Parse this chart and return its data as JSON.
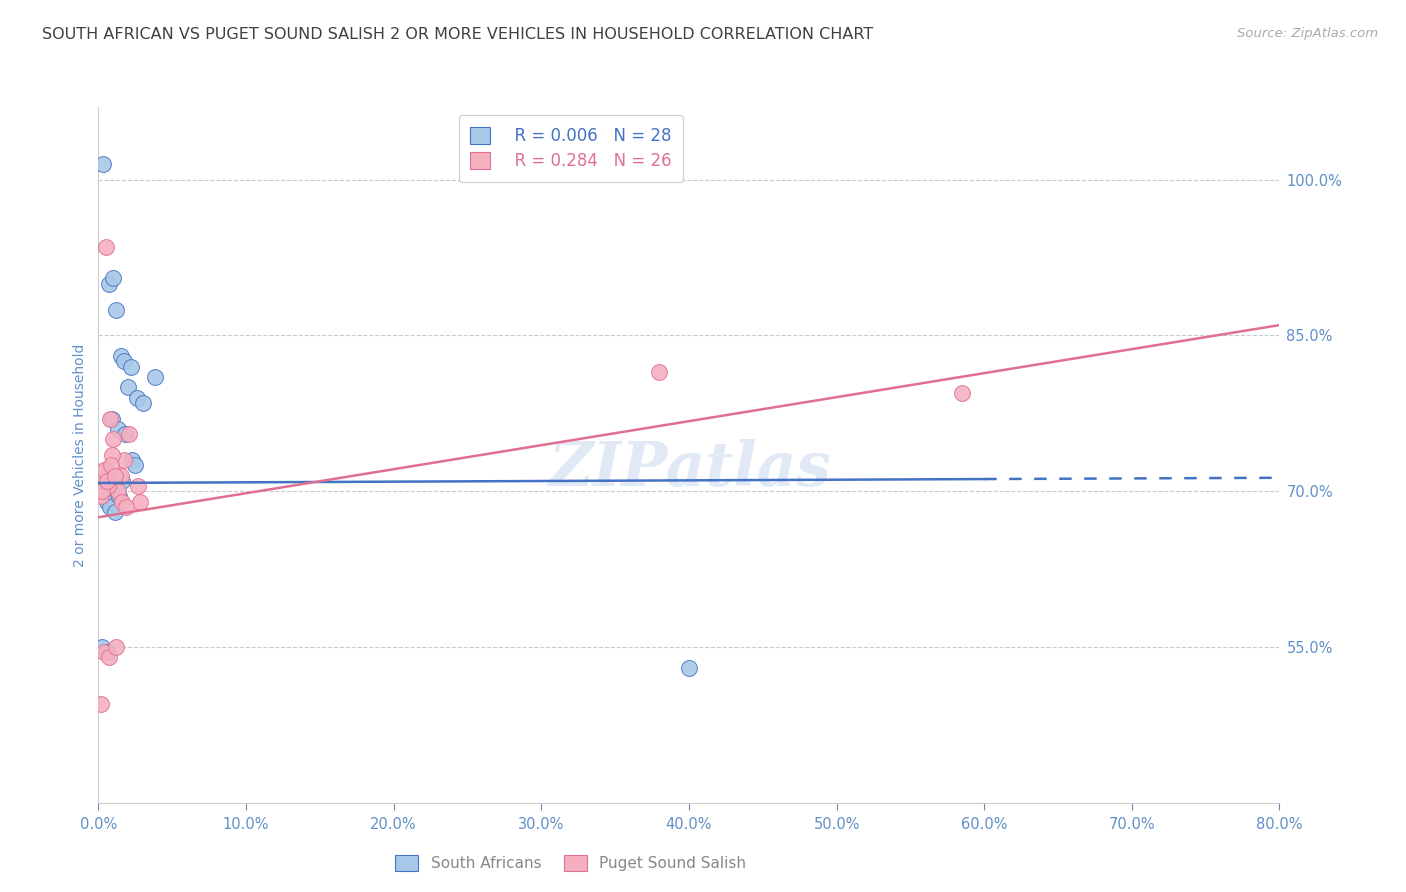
{
  "title": "SOUTH AFRICAN VS PUGET SOUND SALISH 2 OR MORE VEHICLES IN HOUSEHOLD CORRELATION CHART",
  "source": "Source: ZipAtlas.com",
  "xlabel": "",
  "ylabel": "2 or more Vehicles in Household",
  "xlim": [
    0.0,
    80.0
  ],
  "ylim": [
    40.0,
    107.0
  ],
  "yticks": [
    55.0,
    70.0,
    85.0,
    100.0
  ],
  "xticks": [
    0.0,
    10.0,
    20.0,
    30.0,
    40.0,
    50.0,
    60.0,
    70.0,
    80.0
  ],
  "blue_label": "South Africans",
  "pink_label": "Puget Sound Salish",
  "blue_r": "0.006",
  "blue_n": "28",
  "pink_r": "0.284",
  "pink_n": "26",
  "blue_color": "#a8c8e8",
  "pink_color": "#f5b0c0",
  "blue_line_color": "#4472c4",
  "pink_line_color": "#e07090",
  "title_color": "#404040",
  "axis_label_color": "#6090c8",
  "grid_color": "#c8c8d8",
  "blue_scatter_x": [
    0.3,
    0.7,
    1.0,
    1.2,
    1.5,
    1.7,
    2.0,
    2.2,
    2.6,
    3.0,
    3.8,
    0.15,
    0.5,
    0.9,
    1.3,
    1.8,
    2.3,
    0.2,
    0.4,
    0.6,
    0.8,
    1.1,
    1.4,
    1.6,
    2.5,
    0.25,
    0.55,
    40.0
  ],
  "blue_scatter_y": [
    101.5,
    90.0,
    90.5,
    87.5,
    83.0,
    82.5,
    80.0,
    82.0,
    79.0,
    78.5,
    81.0,
    70.5,
    72.0,
    77.0,
    76.0,
    75.5,
    73.0,
    70.0,
    69.5,
    69.0,
    68.5,
    68.0,
    69.5,
    71.0,
    72.5,
    55.0,
    54.5,
    53.0
  ],
  "pink_scatter_x": [
    0.2,
    0.5,
    0.8,
    1.0,
    1.3,
    1.7,
    2.1,
    0.3,
    0.65,
    0.9,
    1.5,
    0.15,
    0.4,
    2.7,
    0.25,
    0.55,
    0.85,
    1.1,
    1.6,
    2.8,
    0.35,
    0.7,
    1.2,
    1.9,
    38.0,
    58.5
  ],
  "pink_scatter_y": [
    49.5,
    93.5,
    77.0,
    75.0,
    70.0,
    73.0,
    75.5,
    71.0,
    70.5,
    73.5,
    71.5,
    69.5,
    72.0,
    70.5,
    70.0,
    71.0,
    72.5,
    71.5,
    69.0,
    69.0,
    54.5,
    54.0,
    55.0,
    68.5,
    81.5,
    79.5
  ],
  "blue_trendline_x": [
    0.0,
    80.0
  ],
  "blue_trendline_y": [
    70.8,
    71.3
  ],
  "blue_solid_end_x": 60.0,
  "pink_trendline_x": [
    0.0,
    80.0
  ],
  "pink_trendline_y": [
    67.5,
    86.0
  ],
  "watermark": "ZIPatlas",
  "background_color": "#ffffff"
}
